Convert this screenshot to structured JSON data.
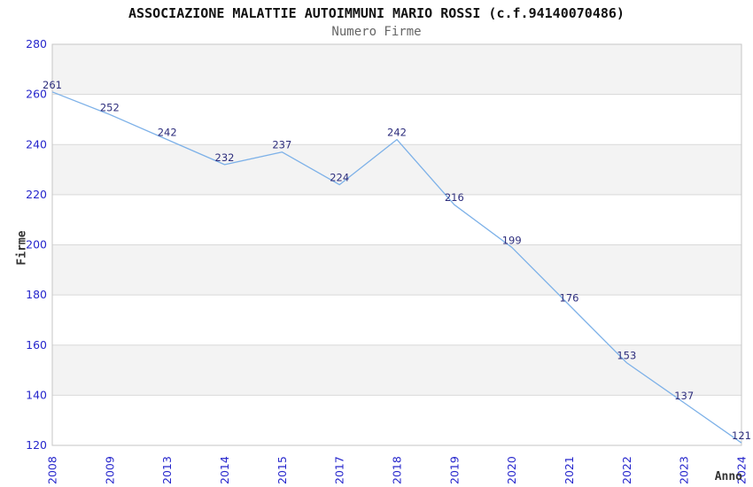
{
  "chart_data": {
    "type": "line",
    "title": "ASSOCIAZIONE MALATTIE AUTOIMMUNI MARIO ROSSI (c.f.94140070486)",
    "subtitle": "Numero Firme",
    "xlabel": "Anno",
    "ylabel": "Firme",
    "categories": [
      "2008",
      "2009",
      "2013",
      "2014",
      "2015",
      "2017",
      "2018",
      "2019",
      "2020",
      "2021",
      "2022",
      "2023",
      "2024"
    ],
    "values": [
      261,
      252,
      242,
      232,
      237,
      224,
      242,
      216,
      199,
      176,
      153,
      137,
      121
    ],
    "ylim": [
      120,
      280
    ],
    "ytick_step": 20,
    "yticks": [
      "120",
      "140",
      "160",
      "180",
      "200",
      "220",
      "240",
      "260",
      "280"
    ],
    "grid": "horizontal-bands-alternating",
    "legend": false,
    "point_labels_visible": true,
    "colors": {
      "line": "#7db1e8",
      "point_label": "#2e2e7d",
      "tick_label": "#2626cc",
      "title": "#111111",
      "subtitle": "#666666",
      "axis_label": "#333333",
      "band_alt": "#f3f3f3",
      "band_main": "#ffffff",
      "grid_line": "#d9d9d9",
      "plot_border": "#c6c6c6",
      "background": "#ffffff"
    }
  }
}
